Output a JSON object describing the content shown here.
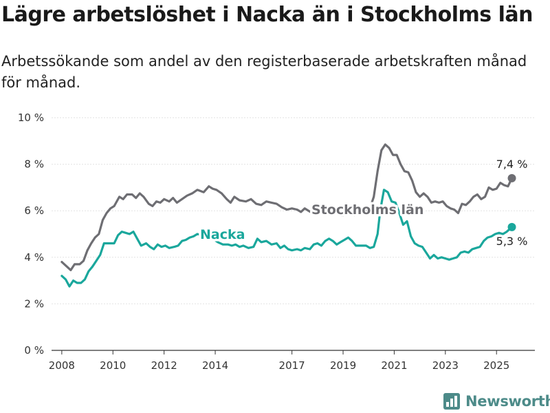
{
  "header": {
    "title": "Lägre arbetslöshet i Nacka än i Stockholms län",
    "subtitle": "Arbetssökande som andel av den registerbaserade arbetskraften månad för månad."
  },
  "brand": {
    "name": "Newsworthy",
    "icon": "bar-chart-icon",
    "color": "#4d8b89"
  },
  "chart_data": {
    "type": "line",
    "title": "Lägre arbetslöshet i Nacka än i Stockholms län",
    "subtitle": "Arbetssökande som andel av den registerbaserade arbetskraften månad för månad.",
    "xlabel": "",
    "ylabel": "",
    "ylim": [
      0,
      10
    ],
    "xlim": [
      2007.6,
      2026.5
    ],
    "y_ticks": [
      0,
      2,
      4,
      6,
      8,
      10
    ],
    "y_tick_labels": [
      "0 %",
      "2 %",
      "4 %",
      "6 %",
      "8 %",
      "10 %"
    ],
    "x_ticks": [
      2008,
      2010,
      2012,
      2014,
      2017,
      2019,
      2021,
      2023,
      2025
    ],
    "x_tick_labels": [
      "2008",
      "2010",
      "2012",
      "2014",
      "2017",
      "2019",
      "2021",
      "2023",
      "2025"
    ],
    "grid": "horizontal",
    "series": [
      {
        "name": "Stockholms län",
        "color": "#6e6e73",
        "end_label": "7,4 %",
        "points": [
          [
            2008.0,
            3.8
          ],
          [
            2008.2,
            3.6
          ],
          [
            2008.35,
            3.45
          ],
          [
            2008.5,
            3.7
          ],
          [
            2008.7,
            3.7
          ],
          [
            2008.85,
            3.85
          ],
          [
            2009.0,
            4.3
          ],
          [
            2009.15,
            4.6
          ],
          [
            2009.3,
            4.85
          ],
          [
            2009.45,
            5.0
          ],
          [
            2009.6,
            5.6
          ],
          [
            2009.75,
            5.9
          ],
          [
            2009.9,
            6.1
          ],
          [
            2010.05,
            6.2
          ],
          [
            2010.25,
            6.6
          ],
          [
            2010.4,
            6.5
          ],
          [
            2010.55,
            6.7
          ],
          [
            2010.75,
            6.7
          ],
          [
            2010.9,
            6.55
          ],
          [
            2011.05,
            6.75
          ],
          [
            2011.2,
            6.6
          ],
          [
            2011.4,
            6.3
          ],
          [
            2011.55,
            6.2
          ],
          [
            2011.7,
            6.4
          ],
          [
            2011.85,
            6.35
          ],
          [
            2012.0,
            6.5
          ],
          [
            2012.2,
            6.4
          ],
          [
            2012.35,
            6.55
          ],
          [
            2012.5,
            6.35
          ],
          [
            2012.7,
            6.5
          ],
          [
            2012.9,
            6.65
          ],
          [
            2013.1,
            6.75
          ],
          [
            2013.3,
            6.9
          ],
          [
            2013.55,
            6.8
          ],
          [
            2013.75,
            7.05
          ],
          [
            2013.9,
            6.95
          ],
          [
            2014.05,
            6.9
          ],
          [
            2014.25,
            6.75
          ],
          [
            2014.45,
            6.5
          ],
          [
            2014.6,
            6.35
          ],
          [
            2014.75,
            6.6
          ],
          [
            2014.95,
            6.45
          ],
          [
            2015.2,
            6.4
          ],
          [
            2015.4,
            6.5
          ],
          [
            2015.6,
            6.3
          ],
          [
            2015.8,
            6.25
          ],
          [
            2016.0,
            6.4
          ],
          [
            2016.2,
            6.35
          ],
          [
            2016.4,
            6.3
          ],
          [
            2016.6,
            6.15
          ],
          [
            2016.8,
            6.05
          ],
          [
            2017.0,
            6.1
          ],
          [
            2017.2,
            6.05
          ],
          [
            2017.35,
            5.95
          ],
          [
            2017.5,
            6.1
          ],
          [
            2017.65,
            6.0
          ],
          [
            2017.8,
            5.9
          ],
          [
            2017.95,
            6.0
          ],
          [
            2018.15,
            5.95
          ],
          [
            2018.35,
            5.85
          ],
          [
            2018.55,
            5.9
          ],
          [
            2018.75,
            5.9
          ],
          [
            2018.95,
            5.8
          ],
          [
            2019.2,
            5.85
          ],
          [
            2019.45,
            5.8
          ],
          [
            2019.65,
            5.85
          ],
          [
            2019.85,
            5.95
          ],
          [
            2020.05,
            6.1
          ],
          [
            2020.2,
            6.6
          ],
          [
            2020.35,
            7.7
          ],
          [
            2020.5,
            8.6
          ],
          [
            2020.65,
            8.85
          ],
          [
            2020.8,
            8.7
          ],
          [
            2020.95,
            8.4
          ],
          [
            2021.1,
            8.4
          ],
          [
            2021.25,
            8.0
          ],
          [
            2021.4,
            7.7
          ],
          [
            2021.55,
            7.65
          ],
          [
            2021.7,
            7.3
          ],
          [
            2021.85,
            6.8
          ],
          [
            2022.0,
            6.6
          ],
          [
            2022.15,
            6.75
          ],
          [
            2022.3,
            6.6
          ],
          [
            2022.45,
            6.35
          ],
          [
            2022.6,
            6.4
          ],
          [
            2022.75,
            6.35
          ],
          [
            2022.9,
            6.4
          ],
          [
            2023.05,
            6.2
          ],
          [
            2023.2,
            6.1
          ],
          [
            2023.35,
            6.05
          ],
          [
            2023.5,
            5.9
          ],
          [
            2023.65,
            6.3
          ],
          [
            2023.8,
            6.25
          ],
          [
            2023.95,
            6.4
          ],
          [
            2024.1,
            6.6
          ],
          [
            2024.25,
            6.7
          ],
          [
            2024.4,
            6.5
          ],
          [
            2024.55,
            6.6
          ],
          [
            2024.7,
            7.0
          ],
          [
            2024.85,
            6.9
          ],
          [
            2025.0,
            6.95
          ],
          [
            2025.15,
            7.2
          ],
          [
            2025.3,
            7.1
          ],
          [
            2025.45,
            7.05
          ],
          [
            2025.6,
            7.4
          ]
        ]
      },
      {
        "name": "Nacka",
        "color": "#1aa79c",
        "end_label": "5,3 %",
        "points": [
          [
            2008.0,
            3.2
          ],
          [
            2008.15,
            3.05
          ],
          [
            2008.3,
            2.75
          ],
          [
            2008.45,
            3.0
          ],
          [
            2008.6,
            2.9
          ],
          [
            2008.75,
            2.9
          ],
          [
            2008.9,
            3.05
          ],
          [
            2009.05,
            3.4
          ],
          [
            2009.2,
            3.6
          ],
          [
            2009.35,
            3.85
          ],
          [
            2009.5,
            4.1
          ],
          [
            2009.65,
            4.6
          ],
          [
            2009.85,
            4.6
          ],
          [
            2010.05,
            4.6
          ],
          [
            2010.2,
            4.95
          ],
          [
            2010.35,
            5.1
          ],
          [
            2010.5,
            5.05
          ],
          [
            2010.65,
            5.0
          ],
          [
            2010.8,
            5.1
          ],
          [
            2010.95,
            4.8
          ],
          [
            2011.1,
            4.5
          ],
          [
            2011.3,
            4.6
          ],
          [
            2011.45,
            4.45
          ],
          [
            2011.6,
            4.35
          ],
          [
            2011.75,
            4.55
          ],
          [
            2011.9,
            4.45
          ],
          [
            2012.05,
            4.5
          ],
          [
            2012.2,
            4.4
          ],
          [
            2012.4,
            4.45
          ],
          [
            2012.55,
            4.5
          ],
          [
            2012.7,
            4.7
          ],
          [
            2012.85,
            4.75
          ],
          [
            2013.0,
            4.85
          ],
          [
            2013.15,
            4.9
          ],
          [
            2013.3,
            5.0
          ],
          [
            2013.5,
            4.95
          ],
          [
            2013.7,
            4.9
          ],
          [
            2013.9,
            4.8
          ],
          [
            2014.1,
            4.65
          ],
          [
            2014.3,
            4.55
          ],
          [
            2014.5,
            4.55
          ],
          [
            2014.65,
            4.5
          ],
          [
            2014.8,
            4.55
          ],
          [
            2014.95,
            4.45
          ],
          [
            2015.1,
            4.5
          ],
          [
            2015.3,
            4.4
          ],
          [
            2015.5,
            4.45
          ],
          [
            2015.65,
            4.8
          ],
          [
            2015.8,
            4.65
          ],
          [
            2016.0,
            4.7
          ],
          [
            2016.2,
            4.55
          ],
          [
            2016.4,
            4.6
          ],
          [
            2016.55,
            4.4
          ],
          [
            2016.7,
            4.5
          ],
          [
            2016.85,
            4.35
          ],
          [
            2017.0,
            4.3
          ],
          [
            2017.2,
            4.35
          ],
          [
            2017.35,
            4.3
          ],
          [
            2017.5,
            4.4
          ],
          [
            2017.7,
            4.35
          ],
          [
            2017.85,
            4.55
          ],
          [
            2018.0,
            4.6
          ],
          [
            2018.15,
            4.5
          ],
          [
            2018.3,
            4.7
          ],
          [
            2018.45,
            4.8
          ],
          [
            2018.6,
            4.7
          ],
          [
            2018.75,
            4.55
          ],
          [
            2018.9,
            4.65
          ],
          [
            2019.05,
            4.75
          ],
          [
            2019.2,
            4.85
          ],
          [
            2019.35,
            4.7
          ],
          [
            2019.5,
            4.5
          ],
          [
            2019.7,
            4.5
          ],
          [
            2019.9,
            4.5
          ],
          [
            2020.05,
            4.4
          ],
          [
            2020.2,
            4.45
          ],
          [
            2020.35,
            5.0
          ],
          [
            2020.45,
            6.0
          ],
          [
            2020.6,
            6.9
          ],
          [
            2020.75,
            6.8
          ],
          [
            2020.9,
            6.4
          ],
          [
            2021.05,
            6.35
          ],
          [
            2021.2,
            5.9
          ],
          [
            2021.35,
            5.4
          ],
          [
            2021.5,
            5.55
          ],
          [
            2021.65,
            4.9
          ],
          [
            2021.8,
            4.6
          ],
          [
            2021.95,
            4.5
          ],
          [
            2022.1,
            4.45
          ],
          [
            2022.25,
            4.2
          ],
          [
            2022.4,
            3.95
          ],
          [
            2022.55,
            4.1
          ],
          [
            2022.7,
            3.95
          ],
          [
            2022.85,
            4.0
          ],
          [
            2023.0,
            3.95
          ],
          [
            2023.15,
            3.9
          ],
          [
            2023.3,
            3.95
          ],
          [
            2023.45,
            4.0
          ],
          [
            2023.6,
            4.2
          ],
          [
            2023.75,
            4.25
          ],
          [
            2023.9,
            4.2
          ],
          [
            2024.05,
            4.35
          ],
          [
            2024.2,
            4.4
          ],
          [
            2024.35,
            4.45
          ],
          [
            2024.5,
            4.7
          ],
          [
            2024.65,
            4.85
          ],
          [
            2024.8,
            4.9
          ],
          [
            2024.95,
            5.0
          ],
          [
            2025.1,
            5.05
          ],
          [
            2025.25,
            5.0
          ],
          [
            2025.4,
            5.1
          ],
          [
            2025.6,
            5.3
          ]
        ]
      }
    ]
  }
}
